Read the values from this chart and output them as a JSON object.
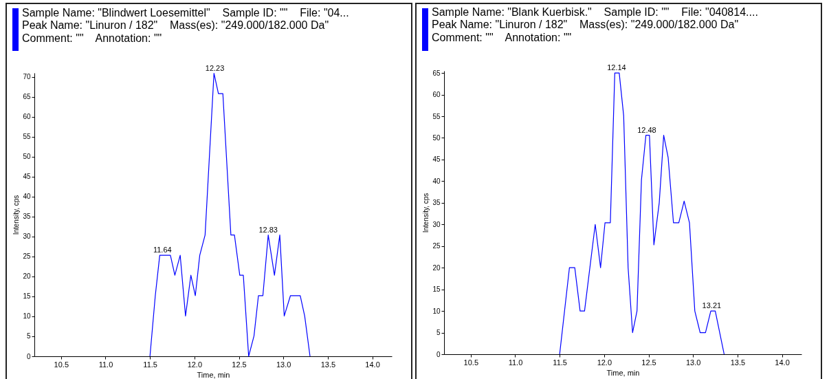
{
  "chart_data": [
    {
      "type": "line",
      "title": "Sample Name: \"Blindwert Loesemittel\"    Sample ID: \"\"    File: \"04...",
      "subtitle": "Peak Name: \"Linuron / 182\"    Mass(es): \"249.000/182.000 Da\"\nComment: \"\"    Annotation: \"\"",
      "xlabel": "Time, min",
      "ylabel": "Intensity, cps",
      "x": [
        11.5,
        11.56,
        11.61,
        11.73,
        11.78,
        11.84,
        11.9,
        11.96,
        12.01,
        12.06,
        12.12,
        12.22,
        12.27,
        12.32,
        12.41,
        12.45,
        12.51,
        12.55,
        12.61,
        12.67,
        12.72,
        12.77,
        12.83,
        12.9,
        12.96,
        13.01,
        13.08,
        13.19,
        13.24,
        13.3
      ],
      "series": [
        {
          "color": "#0000ff",
          "values": [
            0,
            15.2,
            25.3,
            25.3,
            20.3,
            25.3,
            10.1,
            20.3,
            15.2,
            25.3,
            30.4,
            70.9,
            65.8,
            65.8,
            30.4,
            30.4,
            20.3,
            20.3,
            0,
            5.1,
            15.2,
            15.2,
            30.4,
            20.3,
            30.4,
            10.1,
            15.2,
            15.2,
            10.1,
            0
          ]
        }
      ],
      "xlim": [
        10.2,
        14.22
      ],
      "xticks": [
        10.5,
        {
          "value": 11,
          "label": "11.0"
        },
        11.5,
        {
          "value": 12,
          "label": "12.0"
        },
        12.5,
        {
          "value": 13,
          "label": "13.0"
        },
        13.5,
        {
          "value": 14,
          "label": "14.0"
        }
      ],
      "ylim": [
        0,
        71
      ],
      "yticks": [
        0,
        5,
        10,
        15,
        20,
        25,
        30,
        35,
        40,
        45,
        50,
        55,
        60,
        65,
        70
      ],
      "grid": false,
      "line_style": "solid",
      "annotations": [
        {
          "text": "11.64",
          "x": 11.64,
          "y": 25.3
        },
        {
          "text": "12.23",
          "x": 12.23,
          "y": 70.9
        },
        {
          "text": "12.83",
          "x": 12.83,
          "y": 30.4
        }
      ]
    },
    {
      "type": "line",
      "title": "Sample Name: \"Blank Kuerbisk.\"    Sample ID: \"\"    File: \"040814....",
      "subtitle": "Peak Name: \"Linuron / 182\"    Mass(es): \"249.000/182.000 Da\"\nComment: \"\"    Annotation: \"\"",
      "xlabel": "Time, min",
      "ylabel": "Intensity, cps",
      "x": [
        11.5,
        11.61,
        11.67,
        11.73,
        11.78,
        11.9,
        11.96,
        12.01,
        12.07,
        12.12,
        12.17,
        12.22,
        12.27,
        12.32,
        12.37,
        12.42,
        12.47,
        12.51,
        12.56,
        12.62,
        12.67,
        12.72,
        12.78,
        12.84,
        12.9,
        12.96,
        13.02,
        13.08,
        13.14,
        13.2,
        13.25,
        13.35
      ],
      "series": [
        {
          "color": "#0000ff",
          "values": [
            0,
            20,
            20,
            10,
            10,
            30,
            20,
            30.4,
            30.4,
            65,
            65,
            55.1,
            20,
            5,
            10,
            40.3,
            50.6,
            50.6,
            25.3,
            35,
            50.6,
            45.5,
            30.4,
            30.4,
            35.4,
            30.4,
            10,
            5,
            5,
            10,
            10,
            0
          ]
        }
      ],
      "xlim": [
        10.2,
        14.22
      ],
      "xticks": [
        10.5,
        {
          "value": 11,
          "label": "11.0"
        },
        11.5,
        {
          "value": 12,
          "label": "12.0"
        },
        12.5,
        {
          "value": 13,
          "label": "13.0"
        },
        13.5,
        {
          "value": 14,
          "label": "14.0"
        }
      ],
      "ylim": [
        0,
        65.5
      ],
      "yticks": [
        0,
        5,
        10,
        15,
        20,
        25,
        30,
        35,
        40,
        45,
        50,
        55,
        60,
        65
      ],
      "grid": false,
      "line_style": "solid",
      "annotations": [
        {
          "text": "12.14",
          "x": 12.14,
          "y": 65
        },
        {
          "text": "12.48",
          "x": 12.48,
          "y": 50.6
        },
        {
          "text": "13.21",
          "x": 13.21,
          "y": 10
        }
      ]
    }
  ]
}
